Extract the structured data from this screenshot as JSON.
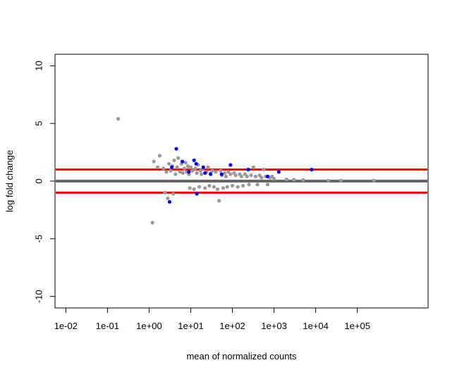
{
  "chart_data": {
    "type": "scatter",
    "title": "",
    "xlabel": "mean of normalized counts",
    "ylabel": "log fold change",
    "x_scale": "log10",
    "xlim": [
      0.0055,
      5000000
    ],
    "ylim": [
      -11,
      11
    ],
    "x_ticks": [
      {
        "value": 0.01,
        "label": "1e-02"
      },
      {
        "value": 0.1,
        "label": "1e-01"
      },
      {
        "value": 1,
        "label": "1e+00"
      },
      {
        "value": 10,
        "label": "1e+01"
      },
      {
        "value": 100,
        "label": "1e+02"
      },
      {
        "value": 1000,
        "label": "1e+03"
      },
      {
        "value": 10000,
        "label": "1e+04"
      },
      {
        "value": 100000,
        "label": "1e+05"
      }
    ],
    "y_ticks": [
      {
        "value": -10,
        "label": "-10"
      },
      {
        "value": -5,
        "label": "-5"
      },
      {
        "value": 0,
        "label": "0"
      },
      {
        "value": 5,
        "label": "5"
      },
      {
        "value": 10,
        "label": "10"
      }
    ],
    "hlines": [
      {
        "y": 0,
        "color": "#666666"
      },
      {
        "y": 1,
        "color": "#ff0000"
      },
      {
        "y": -1,
        "color": "#ff0000"
      }
    ],
    "grid": false,
    "series": [
      {
        "color": "#999999",
        "points": [
          [
            0.18,
            5.4
          ],
          [
            1.2,
            -3.6
          ],
          [
            1.3,
            1.7
          ],
          [
            1.6,
            1.2
          ],
          [
            1.8,
            2.2
          ],
          [
            2.2,
            1.1
          ],
          [
            2.4,
            -1.0
          ],
          [
            2.6,
            0.8
          ],
          [
            2.8,
            -1.5
          ],
          [
            3.0,
            1.5
          ],
          [
            3.3,
            0.9
          ],
          [
            3.6,
            1.3
          ],
          [
            3.8,
            -1.1
          ],
          [
            4.0,
            1.8
          ],
          [
            4.3,
            0.6
          ],
          [
            4.7,
            1.2
          ],
          [
            5.0,
            2.0
          ],
          [
            5.5,
            0.8
          ],
          [
            6.0,
            1.5
          ],
          [
            6.5,
            0.7
          ],
          [
            7.0,
            1.1
          ],
          [
            7.5,
            1.6
          ],
          [
            8.0,
            0.8
          ],
          [
            8.5,
            1.3
          ],
          [
            9.0,
            0.6
          ],
          [
            9.5,
            -0.6
          ],
          [
            10.0,
            1.2
          ],
          [
            11.0,
            0.9
          ],
          [
            12.0,
            -0.7
          ],
          [
            13.0,
            1.1
          ],
          [
            14.0,
            0.7
          ],
          [
            15.0,
            1.4
          ],
          [
            16.0,
            -0.5
          ],
          [
            17.0,
            0.9
          ],
          [
            18.0,
            0.6
          ],
          [
            20.0,
            1.1
          ],
          [
            22.0,
            -0.6
          ],
          [
            24.0,
            0.8
          ],
          [
            26.0,
            1.2
          ],
          [
            28.0,
            -0.4
          ],
          [
            30.0,
            0.7
          ],
          [
            33.0,
            0.9
          ],
          [
            36.0,
            -0.5
          ],
          [
            40.0,
            0.8
          ],
          [
            44.0,
            -0.7
          ],
          [
            48.0,
            -1.7
          ],
          [
            52.0,
            0.9
          ],
          [
            56.0,
            0.5
          ],
          [
            60.0,
            -0.6
          ],
          [
            65.0,
            0.7
          ],
          [
            70.0,
            0.4
          ],
          [
            75.0,
            -0.5
          ],
          [
            80.0,
            0.8
          ],
          [
            90.0,
            0.6
          ],
          [
            100.0,
            -0.4
          ],
          [
            110.0,
            0.7
          ],
          [
            120.0,
            0.5
          ],
          [
            135.0,
            -0.5
          ],
          [
            150.0,
            0.6
          ],
          [
            165.0,
            0.4
          ],
          [
            180.0,
            -0.4
          ],
          [
            200.0,
            0.6
          ],
          [
            225.0,
            0.4
          ],
          [
            250.0,
            -0.3
          ],
          [
            280.0,
            0.5
          ],
          [
            320.0,
            1.2
          ],
          [
            360.0,
            0.4
          ],
          [
            400.0,
            -0.3
          ],
          [
            450.0,
            0.5
          ],
          [
            500.0,
            0.3
          ],
          [
            560.0,
            1.0
          ],
          [
            630.0,
            0.4
          ],
          [
            700.0,
            -0.3
          ],
          [
            800.0,
            0.3
          ],
          [
            900.0,
            0.4
          ],
          [
            1000.0,
            0.2
          ],
          [
            2000.0,
            0.15
          ],
          [
            3000.0,
            0.12
          ],
          [
            5000.0,
            0.1
          ],
          [
            20000.0,
            0.05
          ],
          [
            40000.0,
            0.05
          ],
          [
            250000.0,
            0.05
          ]
        ]
      },
      {
        "color": "#0000ff",
        "points": [
          [
            3.1,
            -1.8
          ],
          [
            3.5,
            1.2
          ],
          [
            4.5,
            2.8
          ],
          [
            6.3,
            1.7
          ],
          [
            9.0,
            0.8
          ],
          [
            12.0,
            1.8
          ],
          [
            13.5,
            1.5
          ],
          [
            14.0,
            -1.1
          ],
          [
            20.0,
            1.2
          ],
          [
            22.0,
            0.7
          ],
          [
            30.0,
            0.6
          ],
          [
            55.0,
            0.6
          ],
          [
            90.0,
            1.4
          ],
          [
            240.0,
            1.0
          ],
          [
            700.0,
            0.4
          ],
          [
            1300.0,
            0.8
          ],
          [
            8000.0,
            1.0
          ]
        ]
      }
    ]
  }
}
